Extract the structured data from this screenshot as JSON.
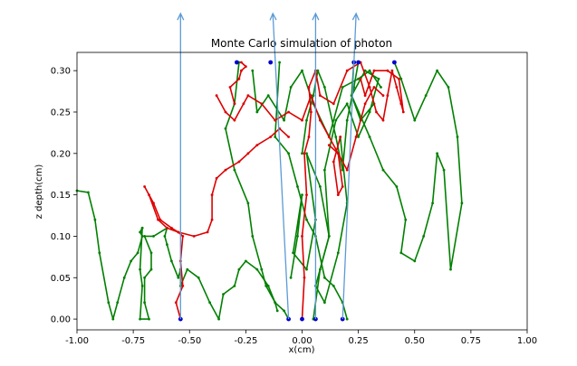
{
  "chart_data": {
    "type": "line",
    "title": "Monte Carlo simulation of photon",
    "xlabel": "x(cm)",
    "ylabel": "z depth(cm)",
    "xlim": [
      -1.0,
      1.0
    ],
    "ylim": [
      0.322,
      -0.013
    ],
    "y_inverted": true,
    "grid": false,
    "legend": false,
    "xticks": [
      "-1.00",
      "-0.75",
      "-0.50",
      "-0.25",
      "0.00",
      "0.25",
      "0.50",
      "0.75",
      "1.00"
    ],
    "yticks": [
      "0.00",
      "0.05",
      "0.10",
      "0.15",
      "0.20",
      "0.25",
      "0.30"
    ],
    "colors": {
      "green": "#008000",
      "red": "#dd0000",
      "endpoint": "#0000cc",
      "arrow": "#5b9bd5"
    },
    "series": [
      {
        "color": "green",
        "x": [
          -1.0,
          -0.95,
          -0.92,
          -0.9,
          -0.86,
          -0.84,
          -0.82,
          -0.79,
          -0.76,
          -0.73,
          -0.71,
          -0.72,
          -0.71
        ],
        "y": [
          0.155,
          0.153,
          0.12,
          0.08,
          0.02,
          0.0,
          0.02,
          0.05,
          0.07,
          0.08,
          0.1,
          0.105,
          0.11
        ]
      },
      {
        "color": "green",
        "x": [
          -0.71,
          -0.72,
          -0.71,
          -0.72,
          -0.68,
          -0.7,
          -0.7,
          -0.67,
          -0.67,
          -0.7,
          -0.66,
          -0.6,
          -0.61,
          -0.6,
          -0.58,
          -0.55,
          -0.54
        ],
        "y": [
          0.11,
          0.06,
          0.04,
          0.0,
          0.0,
          0.02,
          0.05,
          0.06,
          0.08,
          0.1,
          0.1,
          0.11,
          0.1,
          0.09,
          0.07,
          0.05,
          0.06
        ]
      },
      {
        "color": "green",
        "x": [
          -0.54,
          -0.54,
          -0.51,
          -0.46,
          -0.41,
          -0.37,
          -0.35,
          -0.3,
          -0.28,
          -0.25,
          -0.2,
          -0.15,
          -0.12,
          -0.08,
          -0.06
        ],
        "y": [
          0.06,
          0.04,
          0.06,
          0.05,
          0.02,
          0.0,
          0.03,
          0.04,
          0.06,
          0.07,
          0.06,
          0.04,
          0.02,
          0.01,
          0.0
        ]
      },
      {
        "color": "green",
        "x": [
          -0.1,
          -0.12,
          -0.06,
          -0.02,
          0.02,
          0.06,
          0.1,
          0.14,
          0.18,
          0.2
        ],
        "y": [
          0.31,
          0.22,
          0.2,
          0.16,
          0.12,
          0.1,
          0.05,
          0.04,
          0.02,
          0.0
        ]
      },
      {
        "color": "green",
        "x": [
          -0.28,
          -0.3,
          -0.34,
          -0.3,
          -0.24,
          -0.22,
          -0.18,
          -0.16,
          -0.12,
          -0.11
        ],
        "y": [
          0.31,
          0.26,
          0.23,
          0.18,
          0.14,
          0.1,
          0.06,
          0.04,
          0.02,
          0.01
        ]
      },
      {
        "color": "green",
        "x": [
          0.23,
          0.22,
          0.3,
          0.36,
          0.42,
          0.46,
          0.44,
          0.5,
          0.54,
          0.58,
          0.6,
          0.63,
          0.66,
          0.71,
          0.69,
          0.65,
          0.6,
          0.55,
          0.5,
          0.44,
          0.41
        ],
        "y": [
          0.31,
          0.27,
          0.22,
          0.18,
          0.16,
          0.12,
          0.08,
          0.07,
          0.1,
          0.14,
          0.2,
          0.18,
          0.06,
          0.14,
          0.22,
          0.28,
          0.3,
          0.27,
          0.24,
          0.29,
          0.31
        ]
      },
      {
        "color": "green",
        "x": [
          0.0,
          0.02,
          0.05,
          0.07,
          0.1,
          0.15,
          0.18,
          0.2,
          0.23,
          0.25
        ],
        "y": [
          0.2,
          0.24,
          0.27,
          0.3,
          0.28,
          0.22,
          0.18,
          0.24,
          0.28,
          0.31
        ]
      },
      {
        "color": "green",
        "x": [
          -0.22,
          -0.2,
          -0.15,
          -0.08,
          -0.05,
          0.0,
          0.05,
          0.12,
          0.18,
          0.25,
          0.3,
          0.35
        ],
        "y": [
          0.3,
          0.25,
          0.27,
          0.24,
          0.28,
          0.3,
          0.26,
          0.22,
          0.28,
          0.29,
          0.3,
          0.28
        ]
      },
      {
        "color": "green",
        "x": [
          -0.05,
          -0.02,
          0.0,
          -0.04,
          0.02,
          0.06,
          0.02,
          0.08,
          0.12,
          0.06,
          0.1,
          0.16,
          0.2,
          0.17
        ],
        "y": [
          0.05,
          0.1,
          0.15,
          0.08,
          0.06,
          0.12,
          0.2,
          0.16,
          0.1,
          0.04,
          0.02,
          0.08,
          0.14,
          0.22
        ]
      },
      {
        "color": "green",
        "x": [
          0.05,
          0.08,
          0.12,
          0.1,
          0.15,
          0.2,
          0.25,
          0.3,
          0.34,
          0.28,
          0.22,
          0.26,
          0.32
        ],
        "y": [
          0.0,
          0.06,
          0.1,
          0.18,
          0.24,
          0.26,
          0.22,
          0.25,
          0.29,
          0.3,
          0.27,
          0.24,
          0.26
        ]
      },
      {
        "color": "red",
        "x": [
          -0.54,
          -0.56,
          -0.53,
          -0.54,
          -0.53,
          -0.55,
          -0.58,
          -0.63,
          -0.66,
          -0.7,
          -0.68,
          -0.64,
          -0.6,
          -0.55,
          -0.48,
          -0.42,
          -0.4,
          -0.4,
          -0.38,
          -0.34,
          -0.28,
          -0.24,
          -0.2,
          -0.14,
          -0.1,
          -0.06
        ],
        "y": [
          0.0,
          0.02,
          0.04,
          0.07,
          0.1,
          0.105,
          0.11,
          0.12,
          0.14,
          0.16,
          0.15,
          0.12,
          0.11,
          0.105,
          0.1,
          0.105,
          0.12,
          0.15,
          0.17,
          0.18,
          0.19,
          0.2,
          0.21,
          0.22,
          0.23,
          0.22
        ]
      },
      {
        "color": "red",
        "x": [
          -0.38,
          -0.34,
          -0.3,
          -0.26,
          -0.24,
          -0.18,
          -0.12,
          -0.06,
          0.0,
          0.04,
          0.08,
          0.12,
          0.16,
          0.2,
          0.24,
          0.28,
          0.32,
          0.36
        ],
        "y": [
          0.27,
          0.25,
          0.24,
          0.26,
          0.27,
          0.26,
          0.24,
          0.25,
          0.24,
          0.27,
          0.24,
          0.22,
          0.2,
          0.18,
          0.22,
          0.26,
          0.28,
          0.27
        ]
      },
      {
        "color": "red",
        "x": [
          -0.3,
          -0.32,
          -0.28,
          -0.27,
          -0.25,
          -0.27
        ],
        "y": [
          0.26,
          0.28,
          0.29,
          0.3,
          0.305,
          0.31
        ]
      },
      {
        "color": "red",
        "x": [
          0.0,
          0.01,
          0.0,
          0.02,
          0.01,
          0.03,
          0.04,
          0.03,
          0.06,
          0.08,
          0.14,
          0.2,
          0.26,
          0.3,
          0.33,
          0.36,
          0.38,
          0.4,
          0.42,
          0.44,
          0.45,
          0.43,
          0.38,
          0.32,
          0.28,
          0.26
        ],
        "y": [
          0.0,
          0.05,
          0.1,
          0.15,
          0.2,
          0.22,
          0.25,
          0.28,
          0.3,
          0.27,
          0.26,
          0.3,
          0.31,
          0.28,
          0.25,
          0.24,
          0.27,
          0.3,
          0.28,
          0.26,
          0.25,
          0.29,
          0.3,
          0.3,
          0.27,
          0.29
        ]
      },
      {
        "color": "red",
        "x": [
          0.12,
          0.16,
          0.18,
          0.16,
          0.14,
          0.17
        ],
        "y": [
          0.21,
          0.2,
          0.16,
          0.15,
          0.19,
          0.22
        ]
      }
    ],
    "endpoints": {
      "x": [
        -0.54,
        -0.06,
        0.0,
        0.06,
        0.18,
        -0.29,
        -0.14,
        0.23,
        0.25,
        0.41
      ],
      "y": [
        0.0,
        0.0,
        0.0,
        0.0,
        0.0,
        0.31,
        0.31,
        0.31,
        0.31,
        0.31
      ]
    },
    "escape_arrows": [
      {
        "x": -0.54,
        "dx": 0.0
      },
      {
        "x": -0.06,
        "dx": -0.07
      },
      {
        "x": 0.06,
        "dx": 0.0
      },
      {
        "x": 0.18,
        "dx": 0.06
      }
    ]
  }
}
